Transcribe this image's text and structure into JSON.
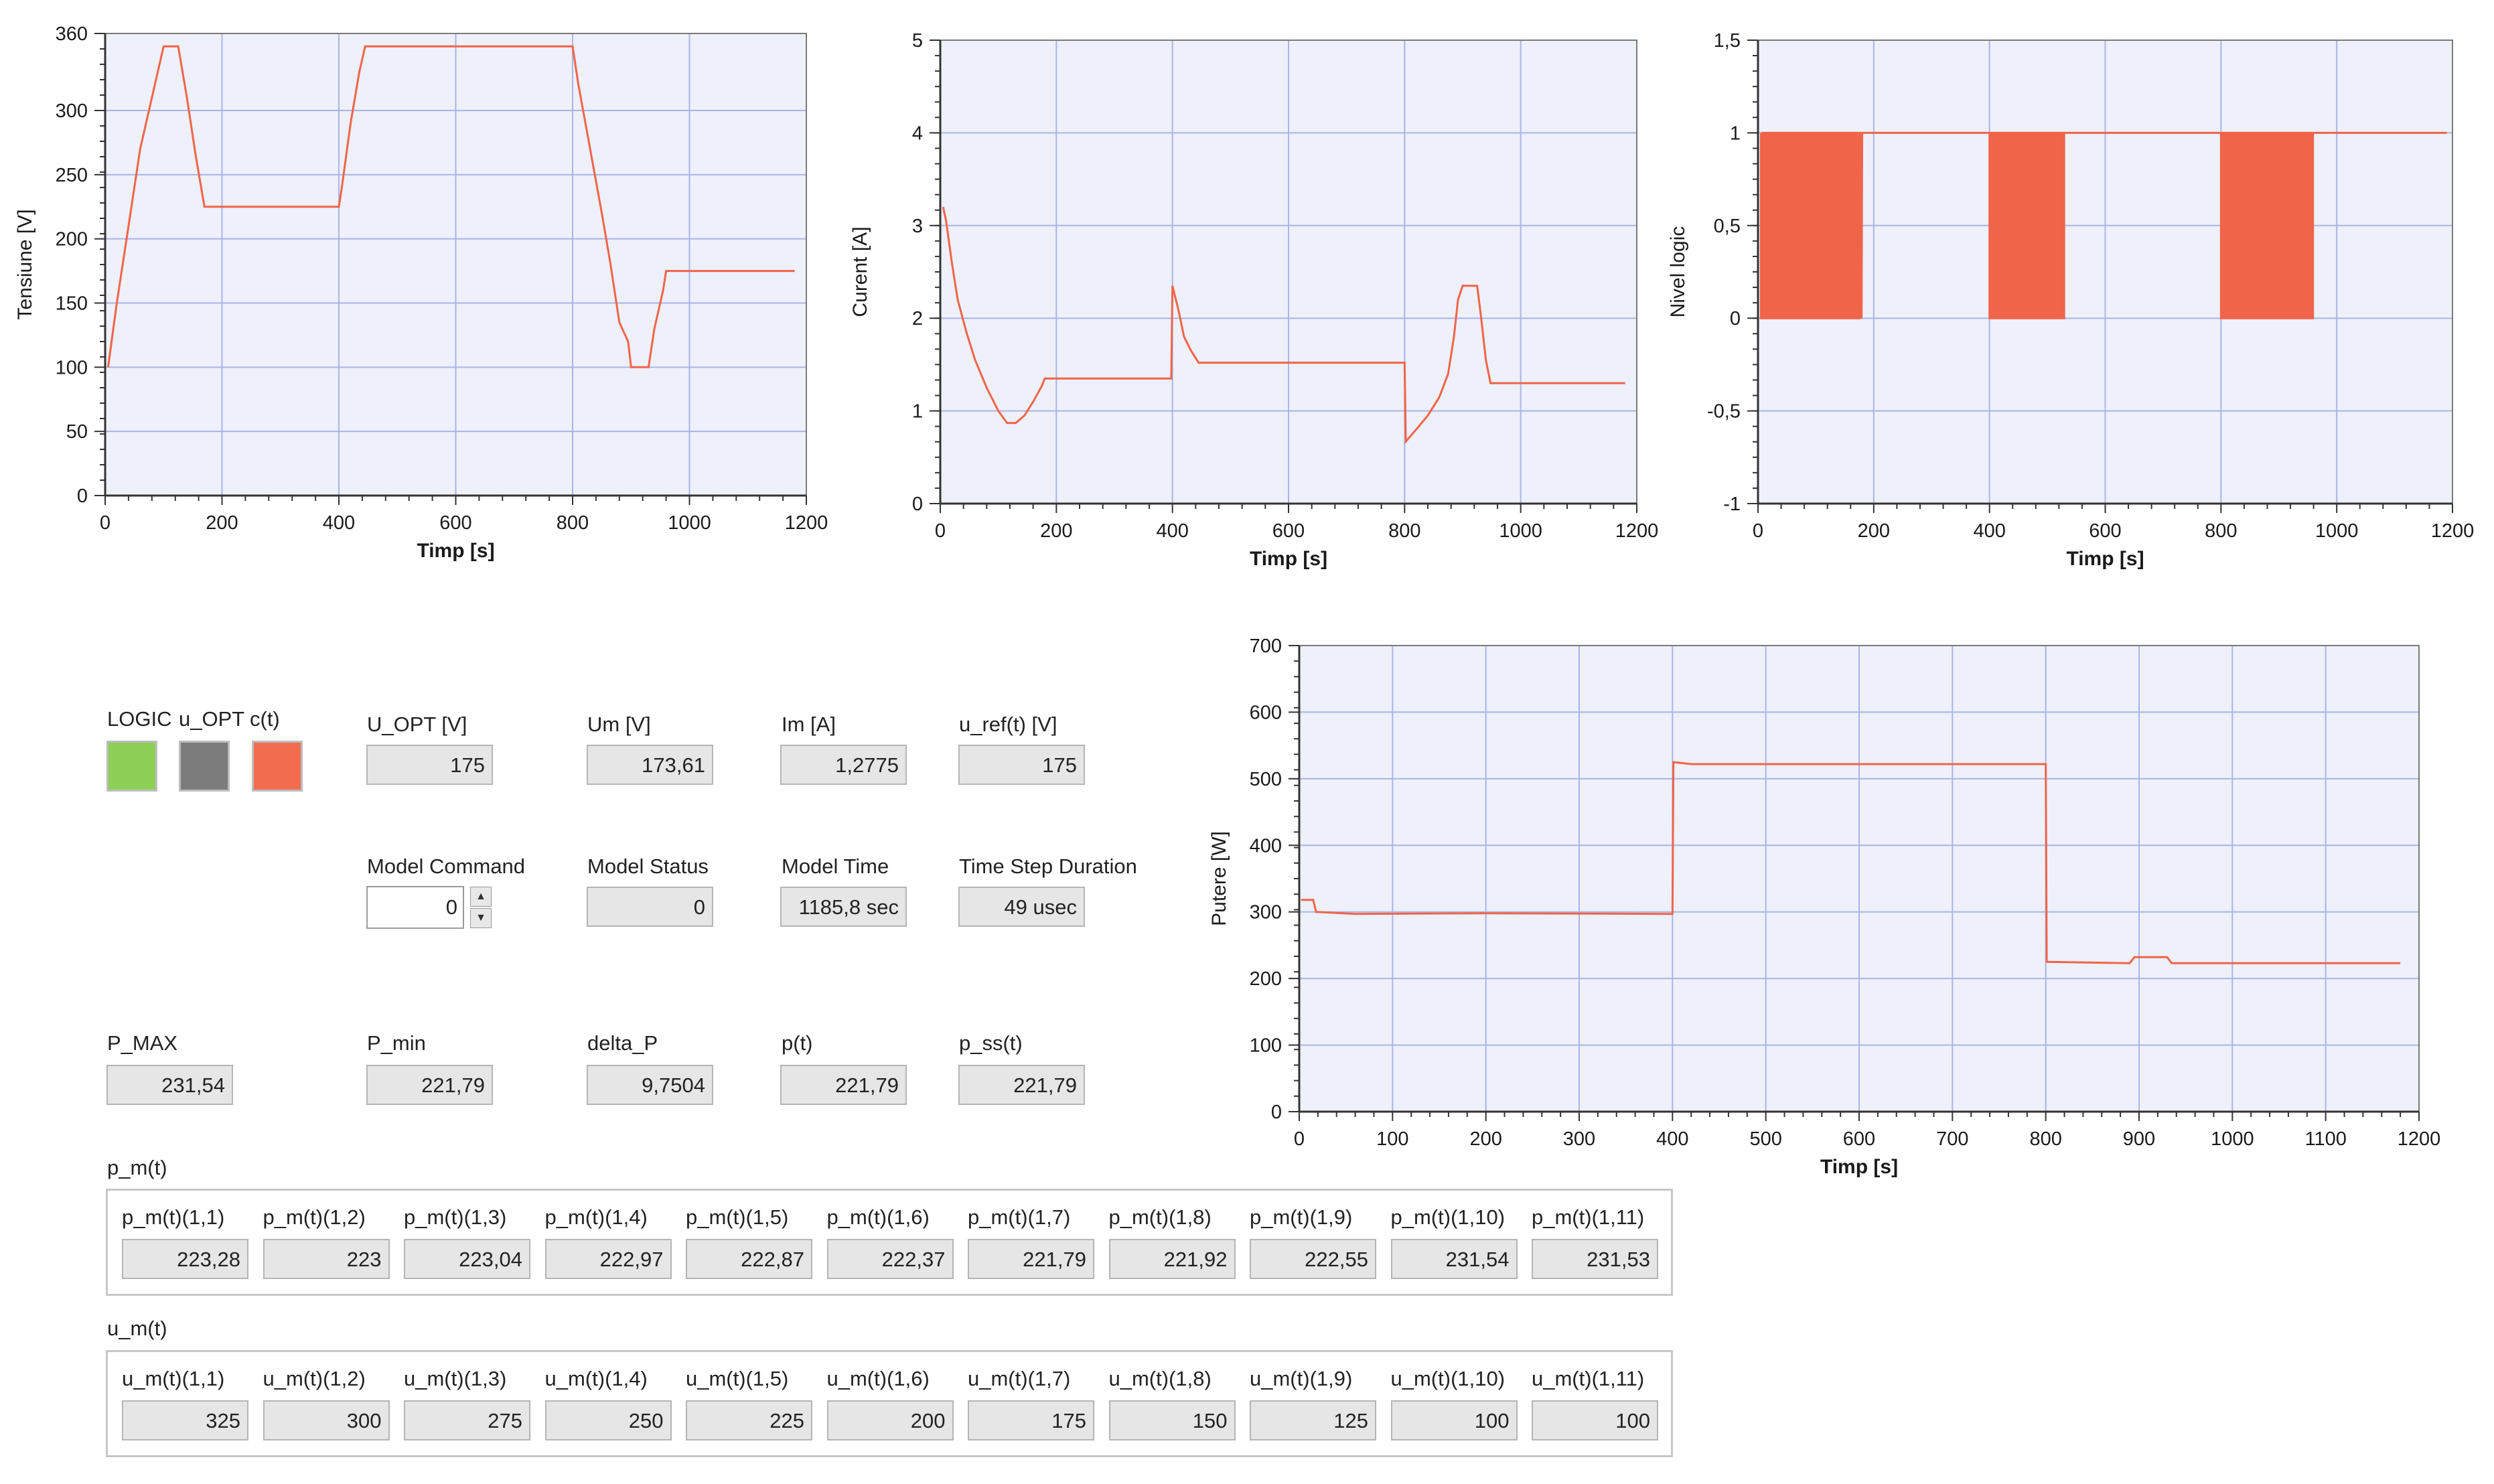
{
  "colors": {
    "trace": "#f0644a",
    "plot_bg": "#eef0fa",
    "grid": "#aab4e6",
    "logic_led": "#8cd155",
    "uopt_led": "#7c7c7c",
    "ct_led": "#f26d4f"
  },
  "chart_data": [
    {
      "type": "line",
      "xlabel": "Timp [s]",
      "ylabel": "Tensiune [V]",
      "xlim": [
        0,
        1200
      ],
      "ylim": [
        0,
        360
      ],
      "xticks": [
        0,
        200,
        400,
        600,
        800,
        1000,
        1200
      ],
      "yticks": [
        0,
        50,
        100,
        150,
        200,
        250,
        300,
        360
      ],
      "x_tick_labels": [
        "0",
        "200",
        "400",
        "600",
        "800",
        "1000",
        "1200"
      ],
      "y_tick_labels": [
        "0",
        "50",
        "100",
        "150",
        "200",
        "250",
        "300",
        "360"
      ],
      "grid": true,
      "series": [
        {
          "points": [
            [
              5,
              100
            ],
            [
              20,
              150
            ],
            [
              40,
              210
            ],
            [
              60,
              270
            ],
            [
              80,
              310
            ],
            [
              100,
              350
            ],
            [
              125,
              350
            ],
            [
              140,
              310
            ],
            [
              155,
              265
            ],
            [
              170,
              225
            ],
            [
              400,
              225
            ],
            [
              405,
              240
            ],
            [
              420,
              290
            ],
            [
              435,
              330
            ],
            [
              445,
              350
            ],
            [
              800,
              350
            ],
            [
              810,
              320
            ],
            [
              830,
              270
            ],
            [
              850,
              220
            ],
            [
              865,
              180
            ],
            [
              880,
              135
            ],
            [
              895,
              120
            ],
            [
              900,
              100
            ],
            [
              930,
              100
            ],
            [
              940,
              130
            ],
            [
              955,
              160
            ],
            [
              960,
              175
            ],
            [
              1180,
              175
            ]
          ]
        }
      ]
    },
    {
      "type": "line",
      "xlabel": "Timp [s]",
      "ylabel": "Curent [A]",
      "xlim": [
        0,
        1200
      ],
      "ylim": [
        0,
        5
      ],
      "xticks": [
        0,
        200,
        400,
        600,
        800,
        1000,
        1200
      ],
      "yticks": [
        0,
        1,
        2,
        3,
        4,
        5
      ],
      "x_tick_labels": [
        "0",
        "200",
        "400",
        "600",
        "800",
        "1000",
        "1200"
      ],
      "y_tick_labels": [
        "0",
        "1",
        "2",
        "3",
        "4",
        "5"
      ],
      "grid": true,
      "series": [
        {
          "points": [
            [
              5,
              3.2
            ],
            [
              10,
              3.05
            ],
            [
              20,
              2.6
            ],
            [
              30,
              2.2
            ],
            [
              45,
              1.85
            ],
            [
              60,
              1.55
            ],
            [
              80,
              1.25
            ],
            [
              100,
              1.0
            ],
            [
              115,
              0.87
            ],
            [
              130,
              0.87
            ],
            [
              145,
              0.95
            ],
            [
              160,
              1.1
            ],
            [
              175,
              1.27
            ],
            [
              180,
              1.35
            ],
            [
              398,
              1.35
            ],
            [
              400,
              2.35
            ],
            [
              410,
              2.1
            ],
            [
              420,
              1.8
            ],
            [
              432,
              1.65
            ],
            [
              445,
              1.52
            ],
            [
              800,
              1.52
            ],
            [
              802,
              0.67
            ],
            [
              820,
              0.8
            ],
            [
              840,
              0.95
            ],
            [
              860,
              1.15
            ],
            [
              875,
              1.4
            ],
            [
              885,
              1.8
            ],
            [
              892,
              2.2
            ],
            [
              900,
              2.35
            ],
            [
              925,
              2.35
            ],
            [
              932,
              2.0
            ],
            [
              940,
              1.55
            ],
            [
              948,
              1.3
            ],
            [
              1180,
              1.3
            ]
          ]
        }
      ]
    },
    {
      "type": "line",
      "xlabel": "Timp [s]",
      "ylabel": "Nivel logic",
      "xlim": [
        0,
        1200
      ],
      "ylim": [
        -1,
        1.5
      ],
      "xticks": [
        0,
        200,
        400,
        600,
        800,
        1000,
        1200
      ],
      "yticks": [
        -1,
        -0.5,
        0,
        0.5,
        1,
        1.5
      ],
      "x_tick_labels": [
        "0",
        "200",
        "400",
        "600",
        "800",
        "1000",
        "1200"
      ],
      "y_tick_labels": [
        "-1",
        "-0,5",
        "0",
        "0,5",
        "1",
        "1,5"
      ],
      "grid": true,
      "series": [
        {
          "toggle_intervals": [
            [
              5,
              180
            ],
            [
              400,
              530
            ],
            [
              800,
              960
            ]
          ],
          "toggle_period": 6,
          "level_high": 1,
          "level_low": 0,
          "x_end": 1190
        }
      ]
    },
    {
      "type": "line",
      "xlabel": "Timp [s]",
      "ylabel": "Putere [W]",
      "xlim": [
        0,
        1200
      ],
      "ylim": [
        0,
        700
      ],
      "xticks": [
        0,
        100,
        200,
        300,
        400,
        500,
        600,
        700,
        800,
        900,
        1000,
        1100,
        1200
      ],
      "yticks": [
        0,
        100,
        200,
        300,
        400,
        500,
        600,
        700
      ],
      "x_tick_labels": [
        "0",
        "100",
        "200",
        "300",
        "400",
        "500",
        "600",
        "700",
        "800",
        "900",
        "1000",
        "1100",
        "1200"
      ],
      "y_tick_labels": [
        "0",
        "100",
        "200",
        "300",
        "400",
        "500",
        "600",
        "700"
      ],
      "grid": true,
      "series": [
        {
          "points": [
            [
              2,
              318
            ],
            [
              15,
              318
            ],
            [
              18,
              300
            ],
            [
              60,
              297
            ],
            [
              200,
              298
            ],
            [
              400,
              297
            ],
            [
              401,
              525
            ],
            [
              420,
              522
            ],
            [
              800,
              522
            ],
            [
              801,
              225
            ],
            [
              890,
              223
            ],
            [
              895,
              232
            ],
            [
              930,
              232
            ],
            [
              935,
              223
            ],
            [
              1180,
              223
            ]
          ]
        }
      ]
    }
  ],
  "legend_leds": {
    "logic": "LOGIC",
    "u_opt": "u_OPT",
    "ct": "c(t)"
  },
  "indicators": {
    "U_OPT": {
      "label": "U_OPT [V]",
      "value": "175"
    },
    "Um": {
      "label": "Um [V]",
      "value": "173,61"
    },
    "Im": {
      "label": "Im [A]",
      "value": "1,2775"
    },
    "u_ref": {
      "label": "u_ref(t) [V]",
      "value": "175"
    },
    "model_command": {
      "label": "Model Command",
      "value": "0"
    },
    "model_status": {
      "label": "Model Status",
      "value": "0"
    },
    "model_time": {
      "label": "Model Time",
      "value": "1185,8 sec"
    },
    "time_step": {
      "label": "Time Step Duration",
      "value": "49 usec"
    },
    "P_MAX": {
      "label": "P_MAX",
      "value": "231,54"
    },
    "P_min": {
      "label": "P_min",
      "value": "221,79"
    },
    "delta_P": {
      "label": "delta_P",
      "value": "9,7504"
    },
    "p_t": {
      "label": "p(t)",
      "value": "221,79"
    },
    "p_ss": {
      "label": "p_ss(t)",
      "value": "221,79"
    }
  },
  "p_m": {
    "title": "p_m(t)",
    "items": [
      {
        "label": "p_m(t)(1,1)",
        "value": "223,28"
      },
      {
        "label": "p_m(t)(1,2)",
        "value": "223"
      },
      {
        "label": "p_m(t)(1,3)",
        "value": "223,04"
      },
      {
        "label": "p_m(t)(1,4)",
        "value": "222,97"
      },
      {
        "label": "p_m(t)(1,5)",
        "value": "222,87"
      },
      {
        "label": "p_m(t)(1,6)",
        "value": "222,37"
      },
      {
        "label": "p_m(t)(1,7)",
        "value": "221,79"
      },
      {
        "label": "p_m(t)(1,8)",
        "value": "221,92"
      },
      {
        "label": "p_m(t)(1,9)",
        "value": "222,55"
      },
      {
        "label": "p_m(t)(1,10)",
        "value": "231,54"
      },
      {
        "label": "p_m(t)(1,11)",
        "value": "231,53"
      }
    ]
  },
  "u_m": {
    "title": "u_m(t)",
    "items": [
      {
        "label": "u_m(t)(1,1)",
        "value": "325"
      },
      {
        "label": "u_m(t)(1,2)",
        "value": "300"
      },
      {
        "label": "u_m(t)(1,3)",
        "value": "275"
      },
      {
        "label": "u_m(t)(1,4)",
        "value": "250"
      },
      {
        "label": "u_m(t)(1,5)",
        "value": "225"
      },
      {
        "label": "u_m(t)(1,6)",
        "value": "200"
      },
      {
        "label": "u_m(t)(1,7)",
        "value": "175"
      },
      {
        "label": "u_m(t)(1,8)",
        "value": "150"
      },
      {
        "label": "u_m(t)(1,9)",
        "value": "125"
      },
      {
        "label": "u_m(t)(1,10)",
        "value": "100"
      },
      {
        "label": "u_m(t)(1,11)",
        "value": "100"
      }
    ]
  }
}
